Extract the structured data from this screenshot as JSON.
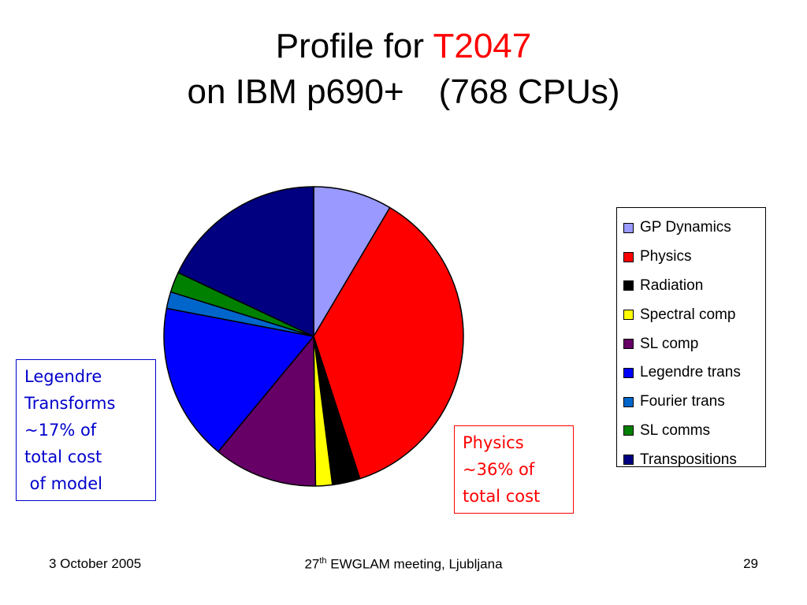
{
  "title": {
    "line1_prefix": "Profile for",
    "line1_highlight": "T2047",
    "line2_main": "on IBM p690+",
    "line2_paren": "(768 CPUs)",
    "highlight_color": "#ff0000"
  },
  "chart_data": {
    "type": "pie",
    "unit": "%",
    "slices": [
      {
        "label": "GP Dynamics",
        "value": 8.5,
        "color": "#9999ff"
      },
      {
        "label": "Physics",
        "value": 36.5,
        "color": "#ff0000"
      },
      {
        "label": "Radiation",
        "value": 3.0,
        "color": "#000000"
      },
      {
        "label": "Spectral comp",
        "value": 1.8,
        "color": "#ffff00"
      },
      {
        "label": "SL comp",
        "value": 11.2,
        "color": "#660066"
      },
      {
        "label": "Legendre trans",
        "value": 17.0,
        "color": "#0000ff"
      },
      {
        "label": "Fourier trans",
        "value": 1.8,
        "color": "#0066cc"
      },
      {
        "label": "SL comms",
        "value": 2.2,
        "color": "#008000"
      },
      {
        "label": "Transpositions",
        "value": 18.0,
        "color": "#000080"
      }
    ],
    "legend_position": "right"
  },
  "callouts": {
    "legendre": [
      "Legendre",
      "Transforms",
      "~17% of",
      "total cost",
      " of model"
    ],
    "physics": [
      "Physics",
      "~36% of",
      "total cost"
    ]
  },
  "footer": {
    "date": "3 October 2005",
    "meeting_sup": "th",
    "meeting_pre": "27",
    "meeting_post": " EWGLAM meeting, Ljubljana",
    "page": "29"
  }
}
